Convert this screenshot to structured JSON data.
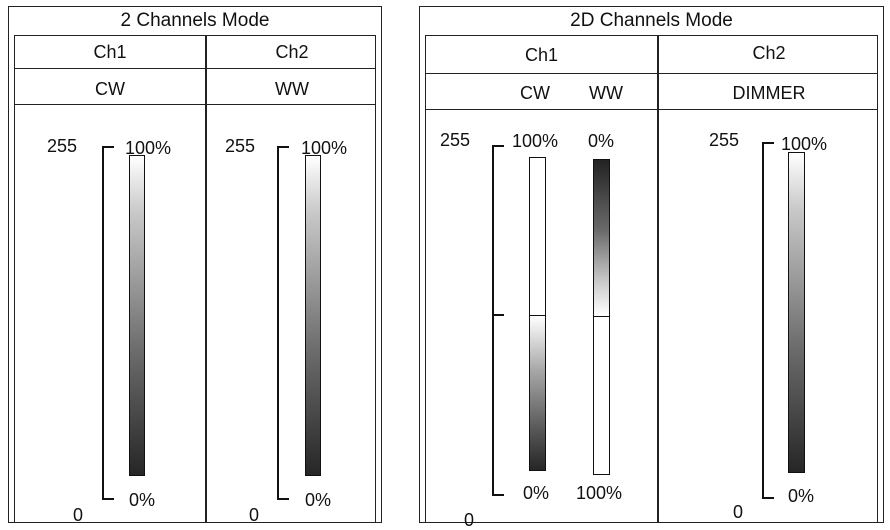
{
  "left_panel": {
    "title": "2 Channels Mode",
    "channels": [
      "Ch1",
      "Ch2"
    ],
    "functions": [
      "CW",
      "WW"
    ],
    "scale": {
      "top": "255",
      "bottom": "0"
    },
    "bars": [
      {
        "top_label": "100%",
        "bottom_label": "0%"
      },
      {
        "top_label": "100%",
        "bottom_label": "0%"
      }
    ]
  },
  "right_panel": {
    "title": "2D Channels Mode",
    "channels": [
      "Ch1",
      "Ch2"
    ],
    "functions": [
      "CW",
      "WW",
      "DIMMER"
    ],
    "scale": {
      "top": "255",
      "bottom": "0"
    },
    "ch1_bars": [
      {
        "name": "CW",
        "top_label": "100%",
        "bottom_label": "0%"
      },
      {
        "name": "WW",
        "top_label": "0%",
        "bottom_label": "100%"
      }
    ],
    "ch1_split_fraction": 0.5,
    "ch2_bar": {
      "top_label": "100%",
      "bottom_label": "0%"
    }
  }
}
